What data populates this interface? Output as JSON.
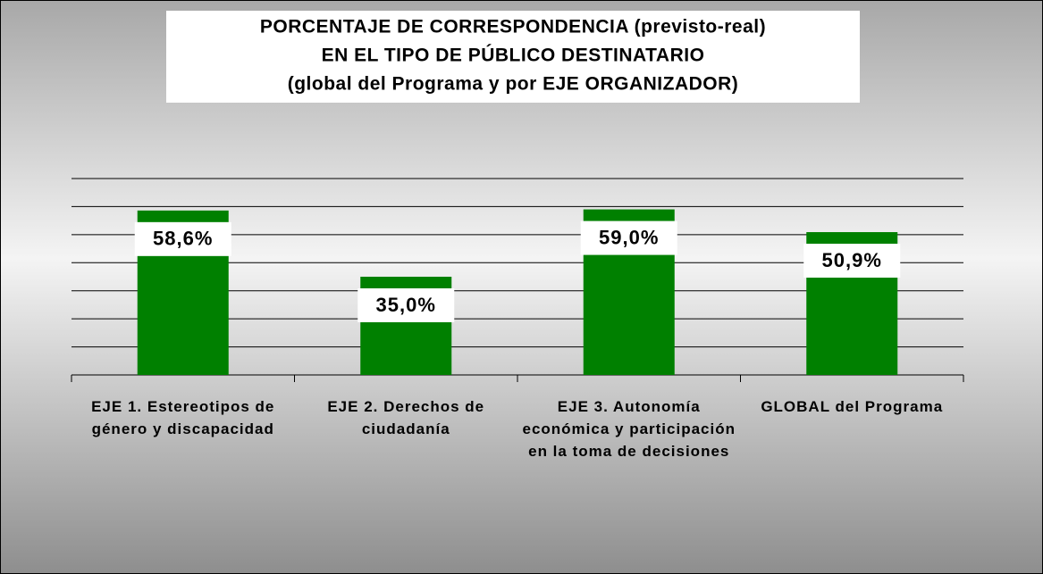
{
  "chart_data": {
    "type": "bar",
    "title": [
      "PORCENTAJE DE CORRESPONDENCIA (previsto-real)",
      "EN EL TIPO DE PÚBLICO DESTINATARIO",
      "(global del Programa y por EJE ORGANIZADOR)"
    ],
    "categories": [
      "EJE 1. Estereotipos de género y discapacidad",
      "EJE 2. Derechos de ciudadanía",
      "EJE 3. Autonomía económica y participación en la toma de decisiones",
      "GLOBAL del Programa"
    ],
    "values": [
      58.6,
      35.0,
      59.0,
      50.9
    ],
    "value_labels": [
      "58,6%",
      "35,0%",
      "59,0%",
      "50,9%"
    ],
    "color": "#008000",
    "ylim": [
      0,
      70
    ],
    "yticks": [
      0,
      10,
      20,
      30,
      40,
      50,
      60,
      70
    ],
    "grid": true
  }
}
